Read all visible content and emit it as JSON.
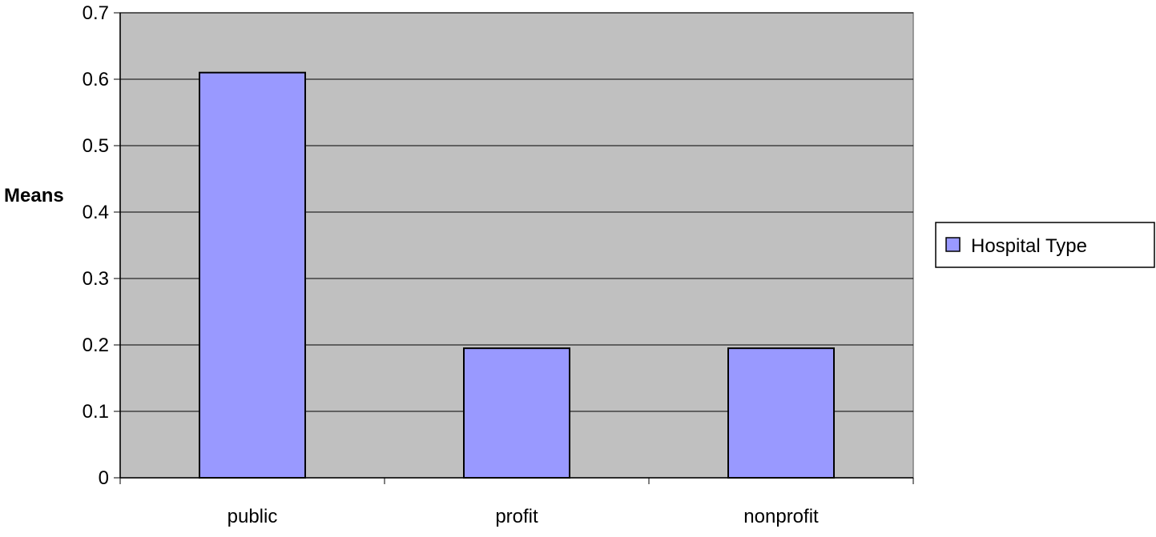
{
  "chart_data": {
    "type": "bar",
    "categories": [
      "public",
      "profit",
      "nonprofit"
    ],
    "series": [
      {
        "name": "Hospital Type",
        "values": [
          0.61,
          0.195,
          0.195
        ]
      }
    ],
    "title": "",
    "xlabel": "",
    "ylabel": "Means",
    "ylim": [
      0,
      0.7
    ],
    "yticks": [
      "0",
      "0.1",
      "0.2",
      "0.3",
      "0.4",
      "0.5",
      "0.6",
      "0.7"
    ],
    "grid": true,
    "legend_position": "right",
    "colors": {
      "plot_background": "#c0c0c0",
      "bar_fill": "#9999ff",
      "bar_stroke": "#000000",
      "gridline": "#000000"
    }
  }
}
